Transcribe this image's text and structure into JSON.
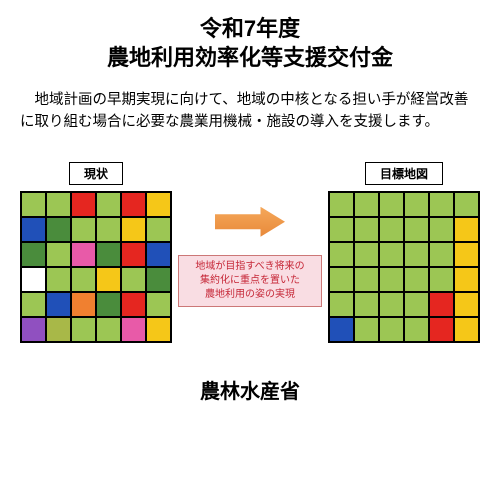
{
  "title_line1": "令和7年度",
  "title_line2": "農地利用効率化等支援交付金",
  "description": "　地域計画の早期実現に向けて、地域の中核となる担い手が経営改善に取り組む場合に必要な農業用機械・施設の導入を支援します。",
  "left_label": "現状",
  "right_label": "目標地図",
  "caption_line1": "地域が目指すべき将来の",
  "caption_line2": "集約化に重点を置いた",
  "caption_line3": "農地利用の姿の実現",
  "footer": "農林水産省",
  "colors": {
    "green": "#9cc654",
    "red": "#e52620",
    "yellow": "#f5c718",
    "blue": "#2050b8",
    "darkgreen": "#4a8c3c",
    "magenta": "#e85aa8",
    "purple": "#9050c0",
    "orange": "#f08030",
    "white": "#ffffff",
    "olive": "#a8b848"
  },
  "left_grid": [
    [
      "green",
      "green",
      "red",
      "green",
      "red",
      "yellow"
    ],
    [
      "blue",
      "darkgreen",
      "green",
      "green",
      "yellow",
      "green"
    ],
    [
      "darkgreen",
      "green",
      "magenta",
      "darkgreen",
      "red",
      "blue"
    ],
    [
      "white",
      "green",
      "green",
      "yellow",
      "green",
      "darkgreen"
    ],
    [
      "green",
      "blue",
      "orange",
      "darkgreen",
      "red",
      "green"
    ],
    [
      "purple",
      "olive",
      "green",
      "green",
      "magenta",
      "yellow"
    ]
  ],
  "right_grid": [
    [
      "green",
      "green",
      "green",
      "green",
      "green",
      "green"
    ],
    [
      "green",
      "green",
      "green",
      "green",
      "green",
      "yellow"
    ],
    [
      "green",
      "green",
      "green",
      "green",
      "green",
      "yellow"
    ],
    [
      "green",
      "green",
      "green",
      "green",
      "green",
      "yellow"
    ],
    [
      "green",
      "green",
      "green",
      "green",
      "red",
      "yellow"
    ],
    [
      "blue",
      "green",
      "green",
      "green",
      "red",
      "yellow"
    ]
  ]
}
